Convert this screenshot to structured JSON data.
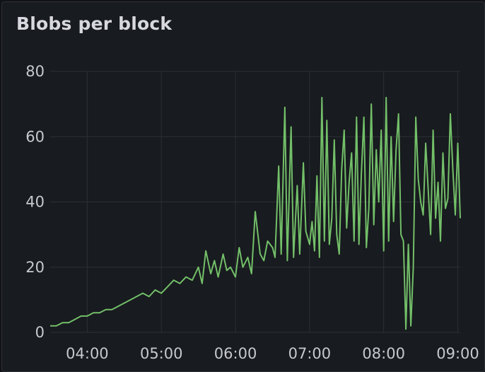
{
  "panel": {
    "title": "Blobs per block"
  },
  "chart_data": {
    "type": "line",
    "title": "Blobs per block",
    "xlabel": "",
    "ylabel": "",
    "ylim": [
      0,
      80
    ],
    "xlim": [
      "03:30",
      "09:02"
    ],
    "grid": true,
    "y_ticks": [
      "0",
      "20",
      "40",
      "60",
      "80"
    ],
    "x_ticks": [
      "04:00",
      "05:00",
      "06:00",
      "07:00",
      "08:00",
      "09:00"
    ],
    "line_color": "#73bf69",
    "series": [
      {
        "name": "",
        "x": [
          "03:30",
          "03:35",
          "03:40",
          "03:45",
          "03:50",
          "03:55",
          "04:00",
          "04:05",
          "04:10",
          "04:15",
          "04:20",
          "04:25",
          "04:30",
          "04:35",
          "04:40",
          "04:45",
          "04:50",
          "04:55",
          "05:00",
          "05:05",
          "05:10",
          "05:15",
          "05:20",
          "05:25",
          "05:30",
          "05:33",
          "05:36",
          "05:40",
          "05:43",
          "05:46",
          "05:50",
          "05:53",
          "05:56",
          "06:00",
          "06:03",
          "06:06",
          "06:10",
          "06:13",
          "06:16",
          "06:20",
          "06:23",
          "06:26",
          "06:30",
          "06:32",
          "06:35",
          "06:37",
          "06:40",
          "06:42",
          "06:45",
          "06:47",
          "06:50",
          "06:52",
          "06:55",
          "06:57",
          "07:00",
          "07:02",
          "07:04",
          "07:06",
          "07:08",
          "07:10",
          "07:12",
          "07:14",
          "07:16",
          "07:18",
          "07:20",
          "07:22",
          "07:24",
          "07:26",
          "07:28",
          "07:30",
          "07:32",
          "07:34",
          "07:36",
          "07:38",
          "07:40",
          "07:42",
          "07:44",
          "07:46",
          "07:48",
          "07:50",
          "07:52",
          "07:54",
          "07:56",
          "07:58",
          "08:00",
          "08:02",
          "08:04",
          "08:06",
          "08:08",
          "08:10",
          "08:12",
          "08:14",
          "08:16",
          "08:18",
          "08:20",
          "08:22",
          "08:24",
          "08:26",
          "08:28",
          "08:30",
          "08:32",
          "08:34",
          "08:36",
          "08:38",
          "08:40",
          "08:42",
          "08:44",
          "08:46",
          "08:48",
          "08:50",
          "08:52",
          "08:54",
          "08:56",
          "08:58",
          "09:00",
          "09:02"
        ],
        "values": [
          2,
          2,
          3,
          3,
          4,
          5,
          5,
          6,
          6,
          7,
          7,
          8,
          9,
          10,
          11,
          12,
          11,
          13,
          12,
          14,
          16,
          15,
          17,
          16,
          20,
          15,
          25,
          18,
          22,
          17,
          24,
          19,
          20,
          17,
          26,
          20,
          23,
          18,
          37,
          24,
          22,
          28,
          26,
          23,
          51,
          24,
          69,
          22,
          63,
          23,
          45,
          24,
          52,
          31,
          27,
          34,
          25,
          48,
          23,
          72,
          28,
          65,
          27,
          35,
          59,
          30,
          24,
          50,
          62,
          32,
          46,
          55,
          28,
          66,
          27,
          49,
          66,
          26,
          38,
          70,
          33,
          56,
          40,
          62,
          25,
          72,
          28,
          60,
          34,
          56,
          67,
          30,
          28,
          1,
          27,
          2,
          20,
          66,
          47,
          40,
          36,
          58,
          44,
          30,
          62,
          35,
          46,
          28,
          55,
          38,
          41,
          67,
          50,
          36,
          58,
          35
        ]
      }
    ]
  }
}
